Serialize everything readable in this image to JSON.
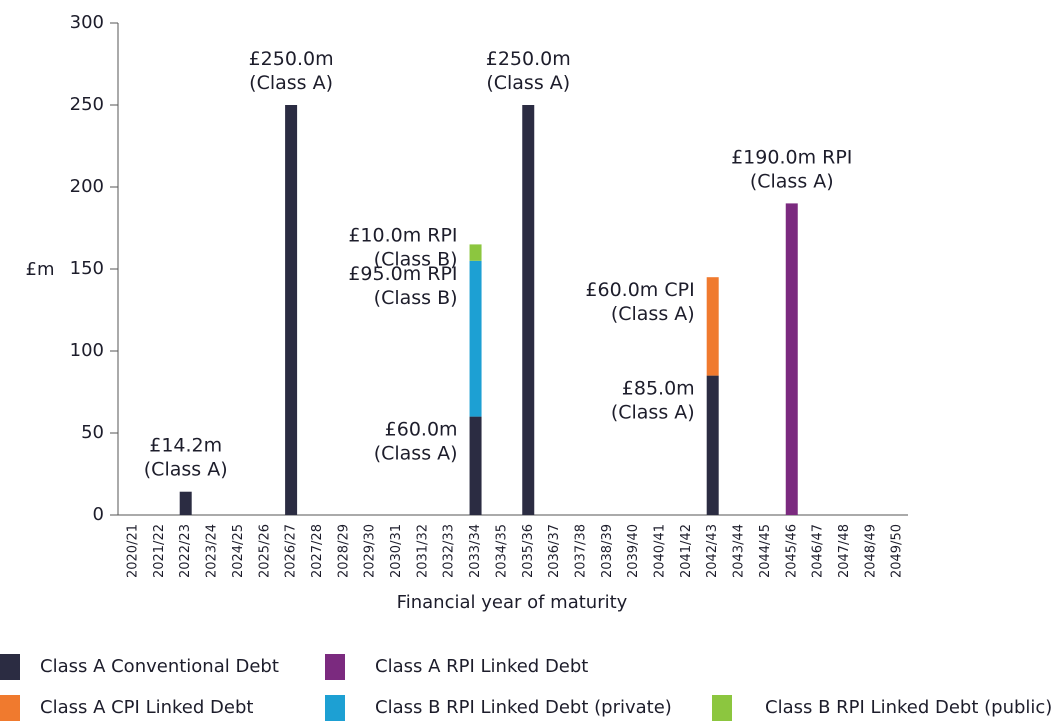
{
  "chart_data": {
    "type": "bar",
    "stacked": true,
    "y_label": "£m",
    "x_label": "Financial year of maturity",
    "categories": [
      "2020/21",
      "2021/22",
      "2022/23",
      "2023/24",
      "2024/25",
      "2025/26",
      "2026/27",
      "2027/28",
      "2028/29",
      "2029/30",
      "2030/31",
      "2031/32",
      "2032/33",
      "2033/34",
      "2034/35",
      "2035/36",
      "2036/37",
      "2037/38",
      "2038/39",
      "2039/40",
      "2040/41",
      "2041/42",
      "2042/43",
      "2043/44",
      "2044/45",
      "2045/46",
      "2046/47",
      "2047/48",
      "2048/49",
      "2049/50"
    ],
    "series": [
      {
        "name": "Class A Conventional Debt",
        "color": "#2b2c42",
        "values": [
          null,
          null,
          14.2,
          null,
          null,
          null,
          250,
          null,
          null,
          null,
          null,
          null,
          null,
          60,
          null,
          250,
          null,
          null,
          null,
          null,
          null,
          null,
          85,
          null,
          null,
          null,
          null,
          null,
          null,
          null
        ],
        "value_labels": [
          null,
          null,
          "£14.2m\n(Class A)",
          null,
          null,
          null,
          "£250.0m\n(Class A)",
          null,
          null,
          null,
          null,
          null,
          null,
          "£60.0m\n(Class A)",
          null,
          "£250.0m\n(Class A)",
          null,
          null,
          null,
          null,
          null,
          null,
          "£85.0m\n(Class A)",
          null,
          null,
          null,
          null,
          null,
          null,
          null
        ]
      },
      {
        "name": "Class A RPI Linked Debt",
        "color": "#7b2a7f",
        "values": [
          null,
          null,
          null,
          null,
          null,
          null,
          null,
          null,
          null,
          null,
          null,
          null,
          null,
          null,
          null,
          null,
          null,
          null,
          null,
          null,
          null,
          null,
          null,
          null,
          null,
          190,
          null,
          null,
          null,
          null
        ],
        "value_labels": [
          null,
          null,
          null,
          null,
          null,
          null,
          null,
          null,
          null,
          null,
          null,
          null,
          null,
          null,
          null,
          null,
          null,
          null,
          null,
          null,
          null,
          null,
          null,
          null,
          null,
          "£190.0m RPI\n(Class A)",
          null,
          null,
          null,
          null
        ]
      },
      {
        "name": "Class A CPI Linked Debt",
        "color": "#f07a2e",
        "values": [
          null,
          null,
          null,
          null,
          null,
          null,
          null,
          null,
          null,
          null,
          null,
          null,
          null,
          null,
          null,
          null,
          null,
          null,
          null,
          null,
          null,
          null,
          60,
          null,
          null,
          null,
          null,
          null,
          null,
          null
        ],
        "value_labels": [
          null,
          null,
          null,
          null,
          null,
          null,
          null,
          null,
          null,
          null,
          null,
          null,
          null,
          null,
          null,
          null,
          null,
          null,
          null,
          null,
          null,
          null,
          "£60.0m CPI\n(Class A)",
          null,
          null,
          null,
          null,
          null,
          null,
          null
        ]
      },
      {
        "name": "Class B RPI Linked Debt (private)",
        "color": "#1da0d3",
        "values": [
          null,
          null,
          null,
          null,
          null,
          null,
          null,
          null,
          null,
          null,
          null,
          null,
          null,
          95,
          null,
          null,
          null,
          null,
          null,
          null,
          null,
          null,
          null,
          null,
          null,
          null,
          null,
          null,
          null,
          null
        ],
        "value_labels": [
          null,
          null,
          null,
          null,
          null,
          null,
          null,
          null,
          null,
          null,
          null,
          null,
          null,
          "£95.0m RPI\n(Class B)",
          null,
          null,
          null,
          null,
          null,
          null,
          null,
          null,
          null,
          null,
          null,
          null,
          null,
          null,
          null,
          null
        ]
      },
      {
        "name": "Class B RPI Linked Debt (public)",
        "color": "#8cc63f",
        "values": [
          null,
          null,
          null,
          null,
          null,
          null,
          null,
          null,
          null,
          null,
          null,
          null,
          null,
          10,
          null,
          null,
          null,
          null,
          null,
          null,
          null,
          null,
          null,
          null,
          null,
          null,
          null,
          null,
          null,
          null
        ],
        "value_labels": [
          null,
          null,
          null,
          null,
          null,
          null,
          null,
          null,
          null,
          null,
          null,
          null,
          null,
          "£10.0m RPI\n(Class B)",
          null,
          null,
          null,
          null,
          null,
          null,
          null,
          null,
          null,
          null,
          null,
          null,
          null,
          null,
          null,
          null
        ]
      }
    ],
    "ylim": [
      0,
      300
    ],
    "yticks": [
      0,
      50,
      100,
      150,
      200,
      250,
      300
    ],
    "grid": false
  }
}
